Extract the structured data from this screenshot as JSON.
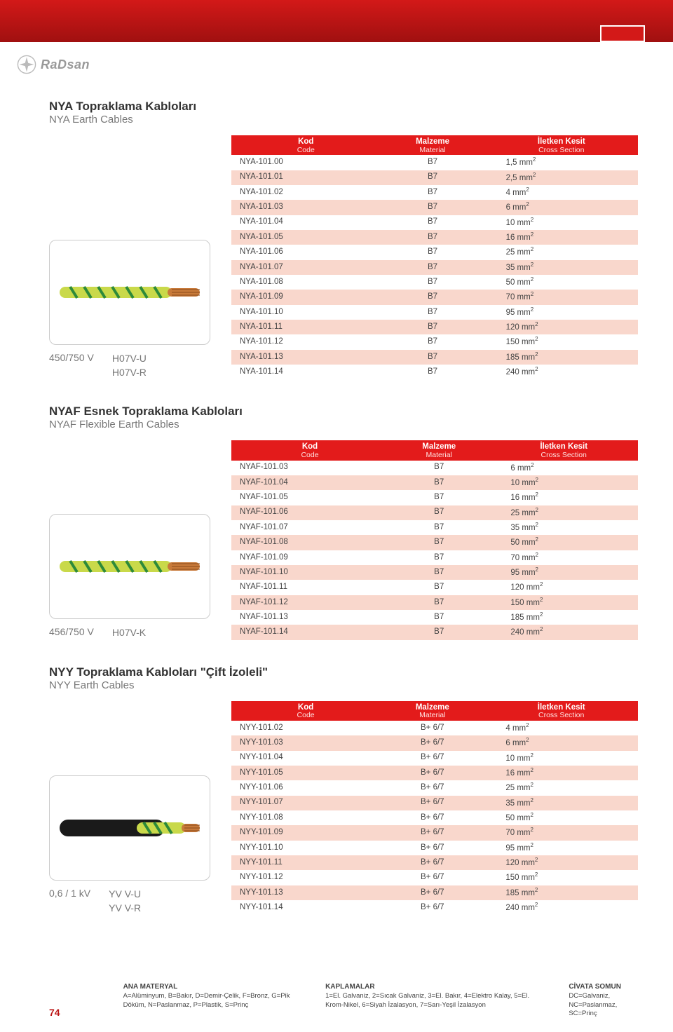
{
  "brand": "RaDsan",
  "page_number": "74",
  "headers": {
    "kod": "Kod",
    "kod_sub": "Code",
    "mal": "Malzeme",
    "mal_sub": "Material",
    "kes": "İletken Kesit",
    "kes_sub": "Cross Section"
  },
  "sections": [
    {
      "title": "NYA Topraklama Kabloları",
      "subtitle": "NYA Earth Cables",
      "voltage": "450/750 V",
      "types": [
        "H07V-U",
        "H07V-R"
      ],
      "cable_color": "yellow-green",
      "rows": [
        {
          "code": "NYA-101.00",
          "mat": "B7",
          "cs": "1,5 mm",
          "c": "white"
        },
        {
          "code": "NYA-101.01",
          "mat": "B7",
          "cs": "2,5 mm",
          "c": "pink"
        },
        {
          "code": "NYA-101.02",
          "mat": "B7",
          "cs": "4 mm",
          "c": "white"
        },
        {
          "code": "NYA-101.03",
          "mat": "B7",
          "cs": "6 mm",
          "c": "pink"
        },
        {
          "code": "NYA-101.04",
          "mat": "B7",
          "cs": "10 mm",
          "c": "white"
        },
        {
          "code": "NYA-101.05",
          "mat": "B7",
          "cs": "16 mm",
          "c": "pink"
        },
        {
          "code": "NYA-101.06",
          "mat": "B7",
          "cs": "25 mm",
          "c": "white"
        },
        {
          "code": "NYA-101.07",
          "mat": "B7",
          "cs": "35 mm",
          "c": "pink"
        },
        {
          "code": "NYA-101.08",
          "mat": "B7",
          "cs": "50 mm",
          "c": "white"
        },
        {
          "code": "NYA-101.09",
          "mat": "B7",
          "cs": "70 mm",
          "c": "pink"
        },
        {
          "code": "NYA-101.10",
          "mat": "B7",
          "cs": "95 mm",
          "c": "white"
        },
        {
          "code": "NYA-101.11",
          "mat": "B7",
          "cs": "120 mm",
          "c": "pink"
        },
        {
          "code": "NYA-101.12",
          "mat": "B7",
          "cs": "150 mm",
          "c": "white"
        },
        {
          "code": "NYA-101.13",
          "mat": "B7",
          "cs": "185 mm",
          "c": "pink"
        },
        {
          "code": "NYA-101.14",
          "mat": "B7",
          "cs": "240 mm",
          "c": "white"
        }
      ]
    },
    {
      "title": "NYAF Esnek Topraklama Kabloları",
      "subtitle": "NYAF Flexible Earth Cables",
      "voltage": "456/750 V",
      "types": [
        "H07V-K"
      ],
      "cable_color": "yellow-green",
      "rows": [
        {
          "code": "NYAF-101.03",
          "mat": "B7",
          "cs": "6 mm",
          "c": "white"
        },
        {
          "code": "NYAF-101.04",
          "mat": "B7",
          "cs": "10 mm",
          "c": "pink"
        },
        {
          "code": "NYAF-101.05",
          "mat": "B7",
          "cs": "16 mm",
          "c": "white"
        },
        {
          "code": "NYAF-101.06",
          "mat": "B7",
          "cs": "25 mm",
          "c": "pink"
        },
        {
          "code": "NYAF-101.07",
          "mat": "B7",
          "cs": "35 mm",
          "c": "white"
        },
        {
          "code": "NYAF-101.08",
          "mat": "B7",
          "cs": "50 mm",
          "c": "pink"
        },
        {
          "code": "NYAF-101.09",
          "mat": "B7",
          "cs": "70 mm",
          "c": "white"
        },
        {
          "code": "NYAF-101.10",
          "mat": "B7",
          "cs": "95 mm",
          "c": "pink"
        },
        {
          "code": "NYAF-101.11",
          "mat": "B7",
          "cs": "120 mm",
          "c": "white"
        },
        {
          "code": "NYAF-101.12",
          "mat": "B7",
          "cs": "150 mm",
          "c": "pink"
        },
        {
          "code": "NYAF-101.13",
          "mat": "B7",
          "cs": "185 mm",
          "c": "white"
        },
        {
          "code": "NYAF-101.14",
          "mat": "B7",
          "cs": "240 mm",
          "c": "pink"
        }
      ]
    },
    {
      "title": "NYY Topraklama Kabloları \"Çift İzoleli\"",
      "subtitle": "NYY Earth Cables",
      "voltage": "0,6 / 1 kV",
      "types": [
        "YV V-U",
        "YV V-R"
      ],
      "cable_color": "black-yellow-green",
      "rows": [
        {
          "code": "NYY-101.02",
          "mat": "B+ 6/7",
          "cs": "4 mm",
          "c": "white"
        },
        {
          "code": "NYY-101.03",
          "mat": "B+ 6/7",
          "cs": "6 mm",
          "c": "pink"
        },
        {
          "code": "NYY-101.04",
          "mat": "B+ 6/7",
          "cs": "10 mm",
          "c": "white"
        },
        {
          "code": "NYY-101.05",
          "mat": "B+ 6/7",
          "cs": "16 mm",
          "c": "pink"
        },
        {
          "code": "NYY-101.06",
          "mat": "B+ 6/7",
          "cs": "25 mm",
          "c": "white"
        },
        {
          "code": "NYY-101.07",
          "mat": "B+ 6/7",
          "cs": "35 mm",
          "c": "pink"
        },
        {
          "code": "NYY-101.08",
          "mat": "B+ 6/7",
          "cs": "50 mm",
          "c": "white"
        },
        {
          "code": "NYY-101.09",
          "mat": "B+ 6/7",
          "cs": "70 mm",
          "c": "pink"
        },
        {
          "code": "NYY-101.10",
          "mat": "B+ 6/7",
          "cs": "95 mm",
          "c": "white"
        },
        {
          "code": "NYY-101.11",
          "mat": "B+ 6/7",
          "cs": "120 mm",
          "c": "pink"
        },
        {
          "code": "NYY-101.12",
          "mat": "B+ 6/7",
          "cs": "150 mm",
          "c": "white"
        },
        {
          "code": "NYY-101.13",
          "mat": "B+ 6/7",
          "cs": "185 mm",
          "c": "pink"
        },
        {
          "code": "NYY-101.14",
          "mat": "B+ 6/7",
          "cs": "240 mm",
          "c": "white"
        }
      ]
    }
  ],
  "footer": {
    "col1_h": "ANA MATERYAL",
    "col1_t": "A=Alüminyum, B=Bakır, D=Demir-Çelik, F=Bronz, G=Pik Döküm, N=Paslanmaz, P=Plastik, S=Prinç",
    "col2_h": "KAPLAMALAR",
    "col2_t": "1=El. Galvaniz, 2=Sıcak Galvaniz, 3=El. Bakır, 4=Elektro Kalay, 5=El. Krom-Nikel, 6=Siyah İzalasyon, 7=Sarı-Yeşil İzalasyon",
    "col3_h": "CİVATA SOMUN",
    "col3_t": "DC=Galvaniz, NC=Paslanmaz, SC=Prinç"
  }
}
